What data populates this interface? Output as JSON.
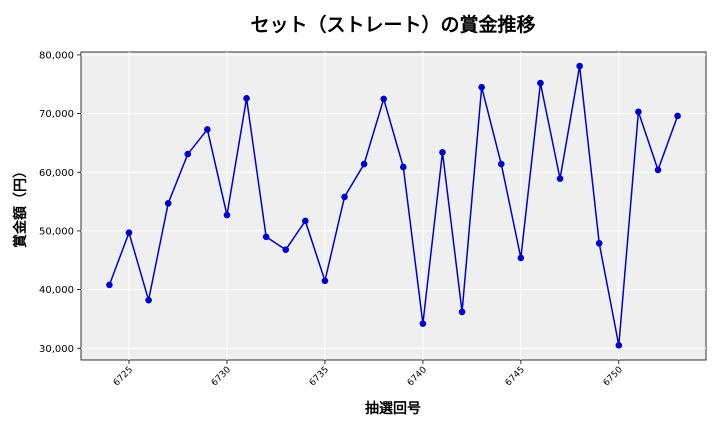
{
  "chart_data": {
    "type": "line",
    "title": "セット（ストレート）の賞金推移",
    "xlabel": "抽選回号",
    "ylabel": "賞金額（円）",
    "xlim": [
      6722.55,
      6754.45
    ],
    "ylim": [
      28000,
      80500
    ],
    "x_ticks": [
      6725,
      6730,
      6735,
      6740,
      6745,
      6750
    ],
    "x_tick_labels": [
      "6725",
      "6730",
      "6735",
      "6740",
      "6745",
      "6750"
    ],
    "y_ticks": [
      30000,
      40000,
      50000,
      60000,
      70000,
      80000
    ],
    "y_tick_labels": [
      "30,000",
      "40,000",
      "50,000",
      "60,000",
      "70,000",
      "80,000"
    ],
    "grid": true,
    "series": [
      {
        "color": "#0000cc",
        "x": [
          6724,
          6725,
          6726,
          6727,
          6728,
          6729,
          6730,
          6731,
          6732,
          6733,
          6734,
          6735,
          6736,
          6737,
          6738,
          6739,
          6740,
          6741,
          6742,
          6743,
          6744,
          6745,
          6746,
          6747,
          6748,
          6749,
          6750,
          6751,
          6752,
          6753
        ],
        "y": [
          40800,
          49700,
          38200,
          54700,
          63100,
          67300,
          52700,
          72600,
          49000,
          46800,
          51700,
          41500,
          55800,
          61400,
          72500,
          60900,
          34200,
          63400,
          36200,
          74500,
          61400,
          45400,
          75200,
          58900,
          78100,
          47900,
          30500,
          70300,
          60400,
          69600
        ]
      }
    ]
  }
}
